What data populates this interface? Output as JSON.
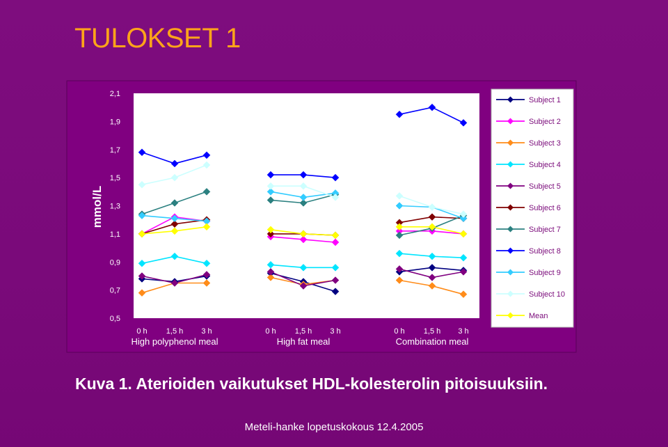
{
  "slide": {
    "title": "TULOKSET 1",
    "caption": "Kuva 1. Aterioiden vaikutukset HDL-kolesterolin pitoisuuksiin.",
    "footer": "Meteli-hanke lopetuskokous 12.4.2005"
  },
  "colors": {
    "background": "#7a0a7a",
    "plot_area": "#800080",
    "inner_plot": "#ffffff",
    "title": "#ffa41a",
    "text": "#ffffff"
  },
  "chart_data": {
    "type": "line",
    "ylabel": "mmol/L",
    "ylim": [
      0.5,
      2.1
    ],
    "yticks": [
      "2,1",
      "1,9",
      "1,7",
      "1,5",
      "1,3",
      "1,1",
      "0,9",
      "0,7",
      "0,5"
    ],
    "ytick_values": [
      2.1,
      1.9,
      1.7,
      1.5,
      1.3,
      1.1,
      0.9,
      0.7,
      0.5
    ],
    "groups": [
      {
        "label": "High polyphenol meal",
        "x": [
          "0 h",
          "1,5 h",
          "3 h"
        ]
      },
      {
        "label": "High fat meal",
        "x": [
          "0 h",
          "1,5 h",
          "3 h"
        ]
      },
      {
        "label": "Combination meal",
        "x": [
          "0 h",
          "1,5 h",
          "3 h"
        ]
      }
    ],
    "legend_position": "right",
    "series": [
      {
        "name": "Subject 1",
        "color": "#000080",
        "values": [
          [
            0.78,
            0.76,
            0.8
          ],
          [
            0.82,
            0.76,
            0.69
          ],
          [
            0.83,
            0.86,
            0.84
          ]
        ]
      },
      {
        "name": "Subject 2",
        "color": "#ff00ff",
        "values": [
          [
            1.1,
            1.22,
            1.19
          ],
          [
            1.08,
            1.06,
            1.04
          ],
          [
            1.12,
            1.12,
            1.1
          ]
        ]
      },
      {
        "name": "Subject 3",
        "color": "#ff8c1a",
        "values": [
          [
            0.68,
            0.75,
            0.75
          ],
          [
            0.79,
            0.74,
            0.77
          ],
          [
            0.77,
            0.73,
            0.67
          ]
        ]
      },
      {
        "name": "Subject 4",
        "color": "#00e5ff",
        "values": [
          [
            0.89,
            0.94,
            0.89
          ],
          [
            0.88,
            0.86,
            0.86
          ],
          [
            0.96,
            0.94,
            0.93
          ]
        ]
      },
      {
        "name": "Subject 5",
        "color": "#800080",
        "values": [
          [
            0.8,
            0.75,
            0.81
          ],
          [
            0.83,
            0.73,
            0.77
          ],
          [
            0.85,
            0.79,
            0.83
          ]
        ]
      },
      {
        "name": "Subject 6",
        "color": "#800000",
        "values": [
          [
            1.1,
            1.17,
            1.2
          ],
          [
            1.1,
            1.1,
            1.09
          ],
          [
            1.18,
            1.22,
            1.21
          ]
        ]
      },
      {
        "name": "Subject 7",
        "color": "#2b8080",
        "values": [
          [
            1.24,
            1.32,
            1.4
          ],
          [
            1.34,
            1.32,
            1.38
          ],
          [
            1.09,
            1.14,
            1.23
          ]
        ]
      },
      {
        "name": "Subject 8",
        "color": "#0000ff",
        "values": [
          [
            1.68,
            1.6,
            1.66
          ],
          [
            1.52,
            1.52,
            1.5
          ],
          [
            1.95,
            2.0,
            1.89
          ]
        ]
      },
      {
        "name": "Subject 9",
        "color": "#33ccff",
        "values": [
          [
            1.23,
            1.21,
            1.19
          ],
          [
            1.4,
            1.36,
            1.39
          ],
          [
            1.3,
            1.29,
            1.21
          ]
        ]
      },
      {
        "name": "Subject 10",
        "color": "#ccffff",
        "values": [
          [
            1.45,
            1.5,
            1.59
          ],
          [
            1.44,
            1.44,
            1.36
          ],
          [
            1.37,
            1.29,
            1.24
          ]
        ]
      },
      {
        "name": "Mean",
        "color": "#ffff00",
        "values": [
          [
            1.1,
            1.12,
            1.15
          ],
          [
            1.13,
            1.1,
            1.09
          ],
          [
            1.15,
            1.15,
            1.1
          ]
        ]
      }
    ]
  }
}
